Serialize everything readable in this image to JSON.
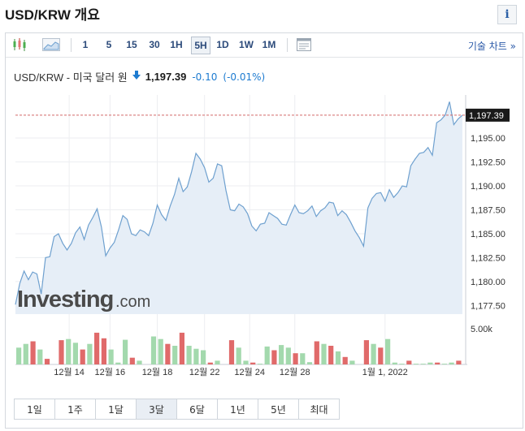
{
  "header": {
    "title": "USD/KRW 개요",
    "info_glyph": "i"
  },
  "toolbar": {
    "intervals": [
      "1",
      "5",
      "15",
      "30",
      "1H",
      "5H",
      "1D",
      "1W",
      "1M"
    ],
    "active_interval": "5H",
    "advanced_chart_label": "기술 차트 »"
  },
  "quote": {
    "name": "USD/KRW - 미국 달러 원",
    "price": "1,197.39",
    "change": "-0.10",
    "change_pct": "(-0.01%)",
    "direction_icon": "arrow-down-icon"
  },
  "watermark": {
    "brand": "Investing",
    "suffix": ".com"
  },
  "chart_data": {
    "type": "area",
    "x_ticks": [
      "12월 14",
      "12월 16",
      "12월 18",
      "12월 22",
      "12월 24",
      "12월 28",
      "1월 1, 2022"
    ],
    "y_ticks": [
      "1,195.00",
      "1,192.50",
      "1,190.00",
      "1,187.50",
      "1,185.00",
      "1,182.50",
      "1,180.00",
      "1,177.50"
    ],
    "ylim": [
      1176.6,
      1199.5
    ],
    "current_price_label": "1,197.39",
    "current_price": 1197.39,
    "series": [
      {
        "values": [
          1177.6,
          1179.8,
          1181.1,
          1180.2,
          1181.0,
          1180.8,
          1178.7,
          1182.5,
          1182.6,
          1184.7,
          1185.0,
          1184.0,
          1183.3,
          1184.0,
          1185.1,
          1185.7,
          1184.4,
          1185.9,
          1186.7,
          1187.6,
          1185.7,
          1182.7,
          1183.5,
          1184.1,
          1185.4,
          1186.9,
          1186.5,
          1185.0,
          1184.8,
          1185.4,
          1185.2,
          1184.8,
          1186.1,
          1188.0,
          1187.0,
          1186.4,
          1187.9,
          1189.1,
          1190.8,
          1189.4,
          1189.9,
          1191.5,
          1193.4,
          1192.8,
          1191.9,
          1190.4,
          1190.8,
          1192.3,
          1192.1,
          1189.5,
          1187.5,
          1187.4,
          1188.1,
          1187.8,
          1187.1,
          1185.8,
          1185.3,
          1186.0,
          1186.1,
          1187.2,
          1186.9,
          1186.6,
          1186.0,
          1185.9,
          1187.0,
          1188.0,
          1187.2,
          1187.1,
          1187.4,
          1187.9,
          1186.8,
          1187.4,
          1187.7,
          1188.3,
          1188.2,
          1186.9,
          1187.4,
          1187.0,
          1186.2,
          1185.3,
          1184.6,
          1183.7,
          1187.7,
          1188.7,
          1189.2,
          1189.3,
          1188.4,
          1189.6,
          1188.8,
          1189.3,
          1190.0,
          1189.9,
          1192.1,
          1192.8,
          1193.4,
          1193.5,
          1194.0,
          1193.2,
          1196.6,
          1196.9,
          1197.4,
          1198.8,
          1196.4,
          1197.0,
          1197.39
        ]
      }
    ],
    "volume": {
      "axis_label": "5.00k",
      "bars": [
        {
          "v": 0.45,
          "c": "g"
        },
        {
          "v": 0.55,
          "c": "g"
        },
        {
          "v": 0.62,
          "c": "r"
        },
        {
          "v": 0.4,
          "c": "g"
        },
        {
          "v": 0.15,
          "c": "r"
        },
        {
          "v": 0.0,
          "c": "g"
        },
        {
          "v": 0.65,
          "c": "r"
        },
        {
          "v": 0.68,
          "c": "g"
        },
        {
          "v": 0.58,
          "c": "g"
        },
        {
          "v": 0.4,
          "c": "r"
        },
        {
          "v": 0.55,
          "c": "g"
        },
        {
          "v": 0.85,
          "c": "r"
        },
        {
          "v": 0.7,
          "c": "r"
        },
        {
          "v": 0.4,
          "c": "g"
        },
        {
          "v": 0.05,
          "c": "g"
        },
        {
          "v": 0.66,
          "c": "g"
        },
        {
          "v": 0.18,
          "c": "r"
        },
        {
          "v": 0.1,
          "c": "g"
        },
        {
          "v": 0.0,
          "c": "g"
        },
        {
          "v": 0.75,
          "c": "g"
        },
        {
          "v": 0.68,
          "c": "g"
        },
        {
          "v": 0.55,
          "c": "r"
        },
        {
          "v": 0.5,
          "c": "g"
        },
        {
          "v": 0.85,
          "c": "r"
        },
        {
          "v": 0.5,
          "c": "g"
        },
        {
          "v": 0.42,
          "c": "g"
        },
        {
          "v": 0.38,
          "c": "g"
        },
        {
          "v": 0.05,
          "c": "r"
        },
        {
          "v": 0.1,
          "c": "g"
        },
        {
          "v": 0.0,
          "c": "g"
        },
        {
          "v": 0.65,
          "c": "r"
        },
        {
          "v": 0.45,
          "c": "g"
        },
        {
          "v": 0.1,
          "c": "g"
        },
        {
          "v": 0.05,
          "c": "r"
        },
        {
          "v": 0.02,
          "c": "g"
        },
        {
          "v": 0.48,
          "c": "g"
        },
        {
          "v": 0.38,
          "c": "r"
        },
        {
          "v": 0.52,
          "c": "g"
        },
        {
          "v": 0.45,
          "c": "g"
        },
        {
          "v": 0.3,
          "c": "r"
        },
        {
          "v": 0.3,
          "c": "g"
        },
        {
          "v": 0.06,
          "c": "g"
        },
        {
          "v": 0.62,
          "c": "r"
        },
        {
          "v": 0.55,
          "c": "g"
        },
        {
          "v": 0.5,
          "c": "r"
        },
        {
          "v": 0.35,
          "c": "g"
        },
        {
          "v": 0.2,
          "c": "r"
        },
        {
          "v": 0.1,
          "c": "g"
        },
        {
          "v": 0.0,
          "c": "g"
        },
        {
          "v": 0.65,
          "c": "r"
        },
        {
          "v": 0.55,
          "c": "g"
        },
        {
          "v": 0.45,
          "c": "r"
        },
        {
          "v": 0.68,
          "c": "g"
        },
        {
          "v": 0.05,
          "c": "g"
        },
        {
          "v": 0.02,
          "c": "g"
        },
        {
          "v": 0.1,
          "c": "r"
        },
        {
          "v": 0.02,
          "c": "g"
        },
        {
          "v": 0.02,
          "c": "g"
        },
        {
          "v": 0.05,
          "c": "g"
        },
        {
          "v": 0.05,
          "c": "r"
        },
        {
          "v": 0.02,
          "c": "g"
        },
        {
          "v": 0.05,
          "c": "g"
        },
        {
          "v": 0.1,
          "c": "r"
        }
      ]
    }
  },
  "ranges": {
    "items": [
      "1일",
      "1주",
      "1달",
      "3달",
      "6달",
      "1년",
      "5년",
      "최대"
    ],
    "active": "3달"
  },
  "colors": {
    "line": "#6ea0cf",
    "area": "#e6eef7",
    "up": "#a3d9ad",
    "down": "#e06a6a",
    "dashed": "#d46a6a"
  }
}
